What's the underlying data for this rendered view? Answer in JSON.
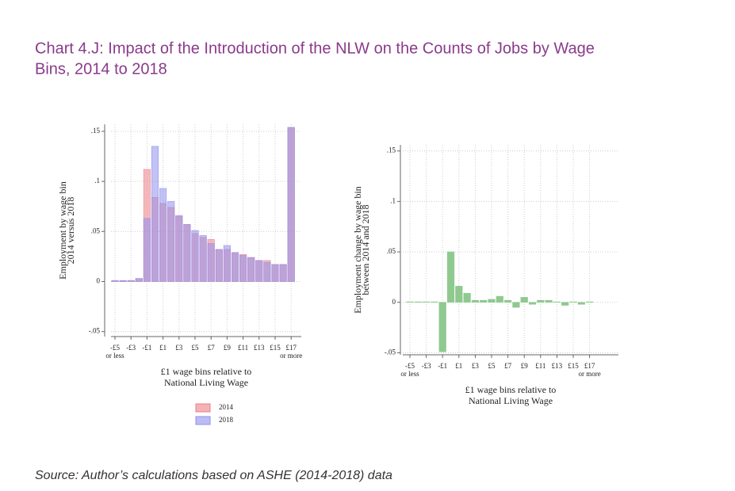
{
  "title": [
    "Chart 4.J: Impact of the Introduction of the NLW on the Counts of Jobs by Wage",
    "Bins, 2014 to 2018"
  ],
  "source": "Source: Author’s calculations based on ASHE (2014-2018) data",
  "chart_data": [
    {
      "type": "bar",
      "ylabel": [
        "Employment by wage bin",
        "2014 versus 2018"
      ],
      "xlabel": [
        "£1 wage bins relative to",
        "National Living Wage"
      ],
      "categories": [
        "-£5",
        null,
        "-£3",
        null,
        "-£1",
        null,
        "£1",
        null,
        "£3",
        null,
        "£5",
        null,
        "£7",
        null,
        "£9",
        null,
        "£11",
        null,
        "£13",
        null,
        "£15",
        null,
        "£17"
      ],
      "annotations": [
        "or less",
        "or more"
      ],
      "series": [
        {
          "name": "2014",
          "color": "#ec7f86",
          "values": [
            0.001,
            0.001,
            0.001,
            0.003,
            0.112,
            0.084,
            0.078,
            0.074,
            0.065,
            0.057,
            0.048,
            0.044,
            0.042,
            0.032,
            0.032,
            0.029,
            0.027,
            0.024,
            0.021,
            0.021,
            0.017,
            0.017,
            0.154
          ]
        },
        {
          "name": "2018",
          "color": "#8f8fec",
          "values": [
            0.001,
            0.001,
            0.001,
            0.003,
            0.063,
            0.135,
            0.093,
            0.08,
            0.066,
            0.057,
            0.051,
            0.046,
            0.038,
            0.032,
            0.036,
            0.029,
            0.026,
            0.024,
            0.021,
            0.019,
            0.017,
            0.017,
            0.154
          ]
        }
      ],
      "ylim": [
        -0.055,
        0.157
      ],
      "yticks": [
        {
          "value": -0.05,
          "label": "-.05"
        },
        0,
        {
          "value": 0.05,
          "label": ".05"
        },
        {
          "value": 0.1,
          "label": ".1"
        },
        {
          "value": 0.15,
          "label": ".15"
        }
      ],
      "grid": true,
      "legend": "bottom"
    },
    {
      "type": "bar",
      "ylabel": [
        "Employment change by wage bin",
        "between 2014 and 2018"
      ],
      "xlabel": [
        "£1 wage bins relative to",
        "National Living Wage"
      ],
      "categories": [
        "-£5",
        null,
        "-£3",
        null,
        "-£1",
        null,
        "£1",
        null,
        "£3",
        null,
        "£5",
        null,
        "£7",
        null,
        "£9",
        null,
        "£11",
        null,
        "£13",
        null,
        "£15",
        null,
        "£17"
      ],
      "annotations": [
        "or less",
        "or more"
      ],
      "color": "#8fc98f",
      "values": [
        0.0005,
        0.0005,
        0.0005,
        0.0005,
        -0.049,
        0.05,
        0.016,
        0.009,
        0.002,
        0.002,
        0.003,
        0.006,
        0.002,
        -0.005,
        0.005,
        -0.002,
        0.002,
        0.002,
        0.0005,
        -0.003,
        0.0005,
        -0.002,
        0.0005
      ],
      "ylim": [
        -0.052,
        0.156
      ],
      "yticks": [
        {
          "value": -0.05,
          "label": "-.05"
        },
        0,
        {
          "value": 0.05,
          "label": ".05"
        },
        {
          "value": 0.1,
          "label": ".1"
        },
        {
          "value": 0.15,
          "label": ".15"
        }
      ],
      "grid": true
    }
  ]
}
